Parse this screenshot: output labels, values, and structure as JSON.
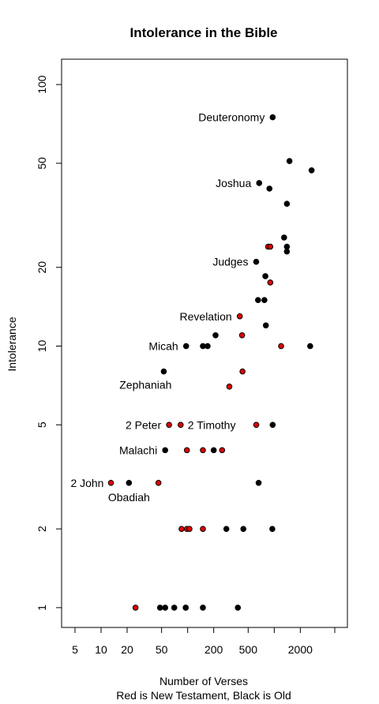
{
  "chart_data": {
    "type": "scatter",
    "title": "Intolerance in the Bible",
    "xlabel": "Number of Verses",
    "xlabel_sub": "Red is New Testament, Black is Old",
    "ylabel": "Intolerance",
    "x_scale": "log",
    "y_scale": "log",
    "xlim": [
      3.5,
      7000
    ],
    "ylim": [
      0.84,
      125
    ],
    "x_ticks": [
      5,
      10,
      20,
      50,
      200,
      500,
      2000
    ],
    "x_ticks_unlabeled": [
      100,
      1000,
      5000
    ],
    "y_ticks": [
      1,
      2,
      5,
      10,
      20,
      50,
      100
    ],
    "legend": "none",
    "grid": false,
    "colors": {
      "new_testament": "#e00000",
      "old_testament": "#000000"
    },
    "series": [
      {
        "name": "New Testament",
        "color": "#e00000",
        "points": [
          {
            "x": 25,
            "y": 1
          },
          {
            "x": 95,
            "y": 1
          },
          {
            "x": 85,
            "y": 2
          },
          {
            "x": 98,
            "y": 2
          },
          {
            "x": 105,
            "y": 2
          },
          {
            "x": 150,
            "y": 2
          },
          {
            "x": 13,
            "y": 3
          },
          {
            "x": 46,
            "y": 3
          },
          {
            "x": 98,
            "y": 4
          },
          {
            "x": 150,
            "y": 4
          },
          {
            "x": 250,
            "y": 4
          },
          {
            "x": 61,
            "y": 5
          },
          {
            "x": 83,
            "y": 5
          },
          {
            "x": 620,
            "y": 5
          },
          {
            "x": 303,
            "y": 7
          },
          {
            "x": 430,
            "y": 8
          },
          {
            "x": 425,
            "y": 11
          },
          {
            "x": 1200,
            "y": 10
          },
          {
            "x": 400,
            "y": 13
          },
          {
            "x": 900,
            "y": 17.5
          },
          {
            "x": 850,
            "y": 24
          },
          {
            "x": 900,
            "y": 24
          }
        ]
      },
      {
        "name": "Old Testament",
        "color": "#000000",
        "points": [
          {
            "x": 48,
            "y": 1
          },
          {
            "x": 55,
            "y": 1
          },
          {
            "x": 70,
            "y": 1
          },
          {
            "x": 95,
            "y": 1
          },
          {
            "x": 150,
            "y": 1
          },
          {
            "x": 380,
            "y": 1
          },
          {
            "x": 280,
            "y": 2
          },
          {
            "x": 440,
            "y": 2
          },
          {
            "x": 950,
            "y": 2
          },
          {
            "x": 21,
            "y": 3
          },
          {
            "x": 660,
            "y": 3
          },
          {
            "x": 55,
            "y": 4
          },
          {
            "x": 200,
            "y": 4
          },
          {
            "x": 959,
            "y": 5
          },
          {
            "x": 53,
            "y": 8
          },
          {
            "x": 96,
            "y": 10
          },
          {
            "x": 150,
            "y": 10
          },
          {
            "x": 170,
            "y": 10
          },
          {
            "x": 2600,
            "y": 10
          },
          {
            "x": 210,
            "y": 11
          },
          {
            "x": 800,
            "y": 12
          },
          {
            "x": 650,
            "y": 15
          },
          {
            "x": 770,
            "y": 15
          },
          {
            "x": 790,
            "y": 18.5
          },
          {
            "x": 619,
            "y": 21
          },
          {
            "x": 1400,
            "y": 23
          },
          {
            "x": 1400,
            "y": 24
          },
          {
            "x": 1300,
            "y": 26
          },
          {
            "x": 1400,
            "y": 35
          },
          {
            "x": 670,
            "y": 42
          },
          {
            "x": 880,
            "y": 40
          },
          {
            "x": 1500,
            "y": 51
          },
          {
            "x": 2700,
            "y": 47
          },
          {
            "x": 959,
            "y": 75
          }
        ]
      }
    ],
    "annotations": [
      {
        "text": "Deuteronomy",
        "x": 959,
        "y": 75
      },
      {
        "text": "Joshua",
        "x": 670,
        "y": 42
      },
      {
        "text": "Judges",
        "x": 619,
        "y": 21
      },
      {
        "text": "Revelation",
        "x": 400,
        "y": 13
      },
      {
        "text": "Micah",
        "x": 96,
        "y": 10
      },
      {
        "text": "Zephaniah",
        "x": 53,
        "y": 8
      },
      {
        "text": "2 Peter",
        "x": 61,
        "y": 5
      },
      {
        "text": "2 Timothy",
        "x": 83,
        "y": 5
      },
      {
        "text": "Malachi",
        "x": 55,
        "y": 4
      },
      {
        "text": "2 John",
        "x": 13,
        "y": 3
      },
      {
        "text": "Obadiah",
        "x": 21,
        "y": 3
      }
    ]
  }
}
